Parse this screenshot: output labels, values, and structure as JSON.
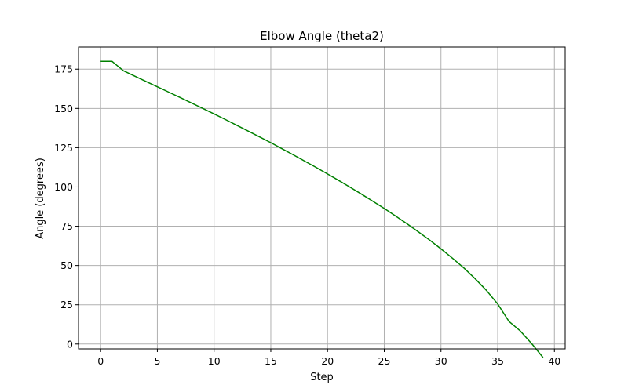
{
  "chart_data": {
    "type": "line",
    "title": "Elbow Angle (theta2)",
    "xlabel": "Step",
    "ylabel": "Angle (degrees)",
    "xlim": [
      -1.95,
      40.95
    ],
    "ylim": [
      -3.1,
      189.1
    ],
    "xticks": [
      0,
      5,
      10,
      15,
      20,
      25,
      30,
      35,
      40
    ],
    "yticks": [
      0,
      25,
      50,
      75,
      100,
      125,
      150,
      175
    ],
    "grid": true,
    "series": [
      {
        "color": "#008000",
        "x": [
          0,
          1,
          2,
          3,
          4,
          5,
          6,
          7,
          8,
          9,
          10,
          11,
          12,
          13,
          14,
          15,
          16,
          17,
          18,
          19,
          20,
          21,
          22,
          23,
          24,
          25,
          26,
          27,
          28,
          29,
          30,
          31,
          32,
          33,
          34,
          35,
          36,
          37,
          38,
          39
        ],
        "y": [
          180,
          180,
          174,
          170.6,
          167.2,
          163.8,
          160.4,
          157,
          153.5,
          150,
          146.5,
          142.9,
          139.3,
          135.6,
          131.9,
          128.2,
          124.3,
          120.4,
          116.4,
          112.4,
          108.3,
          104.1,
          99.8,
          95.4,
          90.9,
          86.3,
          81.5,
          76.6,
          71.5,
          66.2,
          60.6,
          54.7,
          48.5,
          41.7,
          34.2,
          25.5,
          14.3,
          8.3,
          0.2,
          -8.6
        ]
      }
    ]
  }
}
